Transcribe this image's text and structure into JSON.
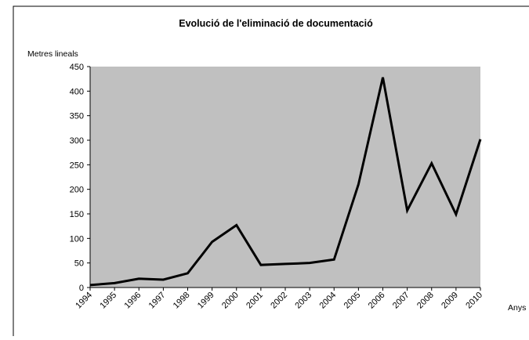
{
  "chart_data": {
    "type": "line",
    "title": "Evolució de l'eliminació de documentació",
    "y_label": "Metres lineals",
    "x_label": "Anys",
    "categories": [
      "1994",
      "1995",
      "1996",
      "1997",
      "1998",
      "1999",
      "2000",
      "2001",
      "2002",
      "2003",
      "2004",
      "2005",
      "2006",
      "2007",
      "2008",
      "2009",
      "2010"
    ],
    "values": [
      5,
      9,
      18,
      16,
      29,
      93,
      127,
      46,
      48,
      50,
      57,
      210,
      428,
      157,
      253,
      149,
      302
    ],
    "color": "#000000",
    "plot_background": "#c0c0c0",
    "ylim": [
      0,
      450
    ],
    "yticks": [
      0,
      50,
      100,
      150,
      200,
      250,
      300,
      350,
      400,
      450
    ],
    "grid": false
  }
}
